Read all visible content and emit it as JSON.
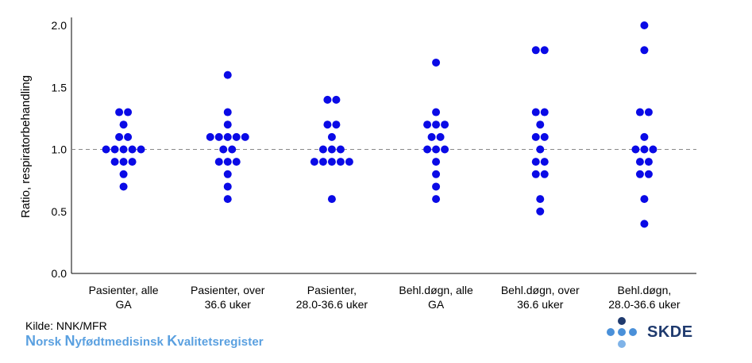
{
  "chart_data": {
    "type": "scatter",
    "subtype": "dot-plot",
    "ylabel": "Ratio, respiratorbehandling",
    "xlabel": "",
    "ylim": [
      0,
      2.0
    ],
    "yticks": [
      "0.0",
      "0.5",
      "1.0",
      "1.5",
      "2.0"
    ],
    "reference_line": 1.0,
    "point_color": "#0a0ae6",
    "reference_color": "#888888",
    "categories": [
      {
        "label_line1": "Pasienter, alle",
        "label_line2": "GA",
        "values": [
          1.3,
          1.3,
          1.2,
          1.1,
          1.1,
          1.0,
          1.0,
          1.0,
          1.0,
          1.0,
          0.9,
          0.9,
          0.9,
          0.8,
          0.7
        ]
      },
      {
        "label_line1": "Pasienter, over",
        "label_line2": "36.6 uker",
        "values": [
          1.6,
          1.3,
          1.2,
          1.1,
          1.1,
          1.1,
          1.1,
          1.1,
          1.0,
          1.0,
          0.9,
          0.9,
          0.9,
          0.8,
          0.7,
          0.6
        ]
      },
      {
        "label_line1": "Pasienter,",
        "label_line2": "28.0-36.6 uker",
        "values": [
          1.4,
          1.4,
          1.2,
          1.2,
          1.1,
          1.0,
          1.0,
          1.0,
          0.9,
          0.9,
          0.9,
          0.9,
          0.9,
          0.6
        ]
      },
      {
        "label_line1": "Behl.døgn, alle",
        "label_line2": "GA",
        "values": [
          1.7,
          1.3,
          1.2,
          1.2,
          1.2,
          1.1,
          1.1,
          1.0,
          1.0,
          1.0,
          0.9,
          0.8,
          0.7,
          0.6
        ]
      },
      {
        "label_line1": "Behl.døgn, over",
        "label_line2": "36.6 uker",
        "values": [
          1.8,
          1.8,
          1.3,
          1.3,
          1.2,
          1.1,
          1.1,
          1.0,
          0.9,
          0.9,
          0.8,
          0.8,
          0.6,
          0.5
        ]
      },
      {
        "label_line1": "Behl.døgn,",
        "label_line2": "28.0-36.6 uker",
        "values": [
          2.0,
          1.8,
          1.3,
          1.3,
          1.1,
          1.0,
          1.0,
          1.0,
          0.9,
          0.9,
          0.8,
          0.8,
          0.6,
          0.4
        ]
      }
    ]
  },
  "footer": {
    "source": "Kilde: NNK/MFR",
    "registry": {
      "w1_cap": "N",
      "w1_rest": "orsk ",
      "w2_cap": "N",
      "w2_rest": "yfødtmedisinsk ",
      "w3_cap": "K",
      "w3_rest": "valitetsregister"
    },
    "logo_text": "SKDE",
    "logo_colors": [
      "#1f3a6e",
      "#4a90d9",
      "#7fb3e8"
    ]
  }
}
